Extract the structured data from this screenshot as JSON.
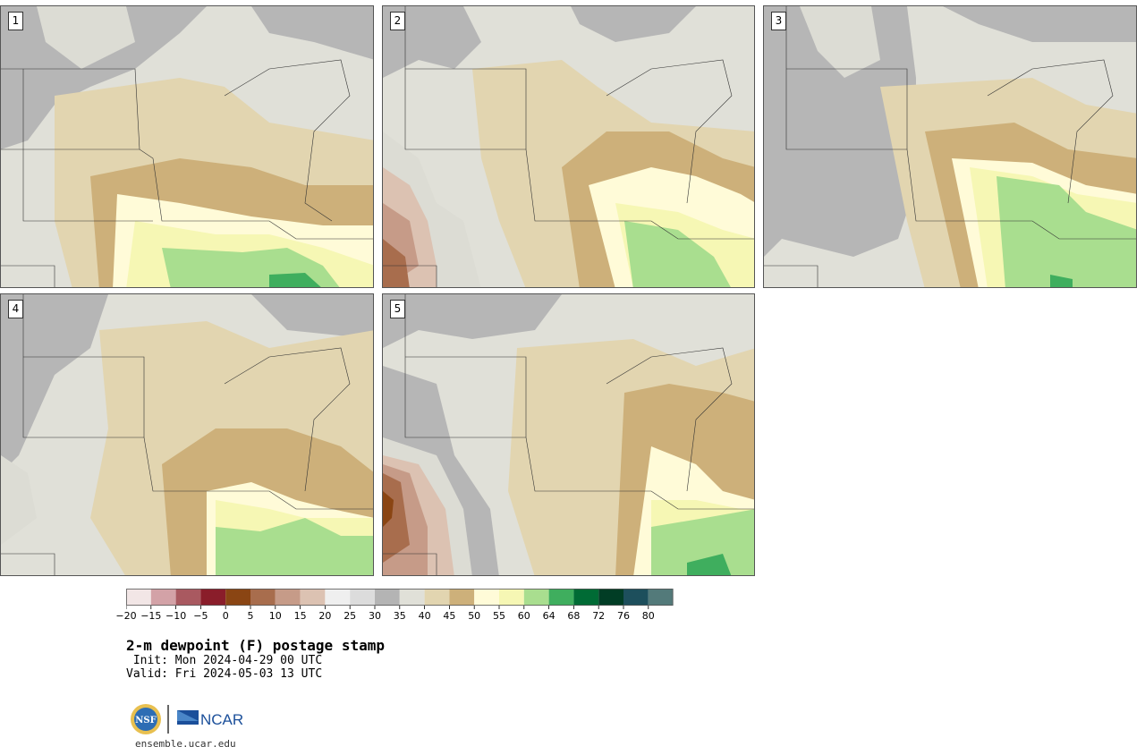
{
  "colors": {
    "c20": "#dcdcd4",
    "c30": "#b6b6b6",
    "c35": "#e0e0d8",
    "c40": "#e2d5b0",
    "c45": "#cdb07a",
    "c50": "#fffbd8",
    "c55": "#f6f7b4",
    "c60": "#a9de8f",
    "c64": "#3fae5e",
    "c68": "#006b35",
    "c0": "#8a4513",
    "c5": "#a86d4d",
    "c10": "#c69b88",
    "c15": "#dcc2b2",
    "border": "#333333"
  },
  "panels": [
    {
      "label": "1"
    },
    {
      "label": "2"
    },
    {
      "label": "3"
    },
    {
      "label": "4"
    },
    {
      "label": "5"
    }
  ],
  "colorbar": {
    "colors": [
      "#f2e6e6",
      "#d3a2a7",
      "#a95960",
      "#8a1d2a",
      "#8a4513",
      "#a86d4d",
      "#c69b88",
      "#dcc2b2",
      "#efefef",
      "#dcdcdc",
      "#b4b4b4",
      "#e0e0d8",
      "#e2d5b0",
      "#cdb07a",
      "#fffbd8",
      "#f6f7b4",
      "#a9de8f",
      "#3fae5e",
      "#006b35",
      "#013d25",
      "#1d4f5c",
      "#537a7a"
    ],
    "labels": [
      "−20",
      "−15",
      "−10",
      "−5",
      "0",
      "5",
      "10",
      "15",
      "20",
      "25",
      "30",
      "35",
      "40",
      "45",
      "50",
      "55",
      "60",
      "64",
      "68",
      "72",
      "76",
      "80"
    ]
  },
  "title": "2-m dewpoint (F) postage stamp",
  "init": " Init: Mon 2024-04-29 00 UTC",
  "valid": "Valid: Fri 2024-05-03 13 UTC",
  "logos": {
    "nsf": "NSF",
    "ncar": "NCAR"
  },
  "site": "ensemble.ucar.edu"
}
